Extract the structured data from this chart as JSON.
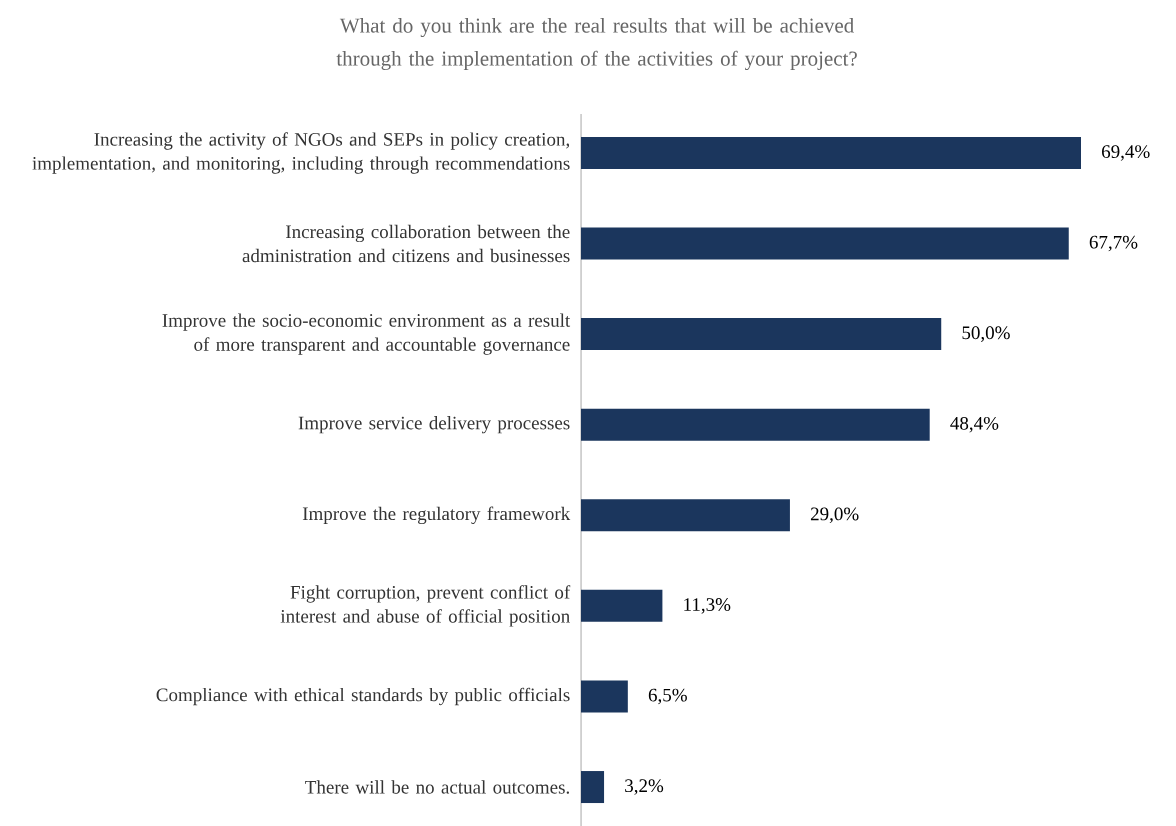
{
  "chart_data": {
    "type": "bar",
    "orientation": "horizontal",
    "title": "What do you think are the real results that will be achieved through the implementation of the activities of your project?",
    "categories": [
      "Increasing the activity of NGOs and SEPs in policy creation, implementation, and monitoring, including through recommendations",
      "Increasing collaboration between the administration and citizens and businesses",
      "Improve the socio-economic environment as a result of more transparent and accountable governance",
      "Improve service delivery processes",
      "Improve the regulatory framework",
      "Fight corruption, prevent conflict of interest and abuse of official position",
      "Compliance with ethical standards by public officials",
      "There will be no actual outcomes."
    ],
    "values": [
      69.4,
      67.7,
      50.0,
      48.4,
      29.0,
      11.3,
      6.5,
      3.2
    ],
    "value_labels": [
      "69,4%",
      "67,7%",
      "50,0%",
      "48,4%",
      "29,0%",
      "11,3%",
      "6,5%",
      "3,2%"
    ],
    "color": "#1b365d"
  }
}
